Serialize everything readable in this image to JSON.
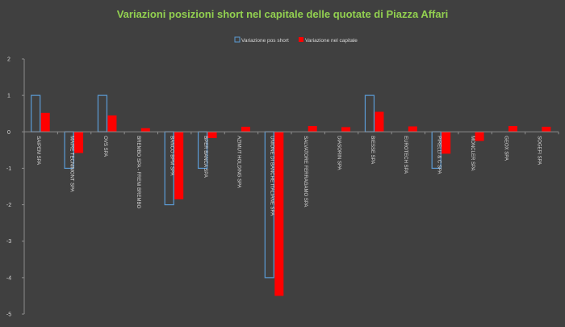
{
  "chart_data": {
    "type": "bar",
    "title": "Variazioni posizioni short nel capitale delle quotate di Piazza Affari",
    "xlabel": "",
    "ylabel": "",
    "ylim": [
      -5,
      2
    ],
    "yticks": [
      2,
      1,
      0,
      -1,
      -2,
      -3,
      -4,
      -5
    ],
    "grid": false,
    "legend_position": "top-center",
    "categories": [
      "SAIPEM SPA",
      "MAIRE TECNIMONT SPA",
      "OVS SPA",
      "BREMBO SPA - FRENI BREMBO",
      "BANCO BPM SPA",
      "BPER BANCA SPA",
      "AZIMUT HOLDING SPA",
      "UNIONE DI BANCHE ITALIANE SPA",
      "SALVATORE FERRAGAMO SPA",
      "DIASORIN SPA",
      "BIESSE SPA",
      "EUROTECH SPA",
      "PIRELLI & C SPA",
      "MONCLER SPA",
      "GEOX SPA",
      "SOGEFI SPA"
    ],
    "series": [
      {
        "name": "Variazione pos short",
        "style": "outline",
        "color": "#5B9BD5",
        "values": [
          1,
          -1,
          1,
          0,
          -2,
          -1,
          0,
          -4,
          0,
          0,
          1,
          0,
          -1,
          0,
          0,
          0
        ]
      },
      {
        "name": "Variazione nel capitale",
        "style": "filled",
        "color": "#FF0000",
        "values": [
          0.52,
          -0.58,
          0.45,
          0.1,
          -1.85,
          -0.17,
          0.14,
          -4.5,
          0.16,
          0.13,
          0.55,
          0.15,
          -0.6,
          -0.25,
          0.16,
          0.14
        ]
      }
    ]
  },
  "colors": {
    "background": "#404040",
    "title": "#92D050",
    "axis_text": "#D9D9D9",
    "axis_line": "#8C8C8C"
  }
}
